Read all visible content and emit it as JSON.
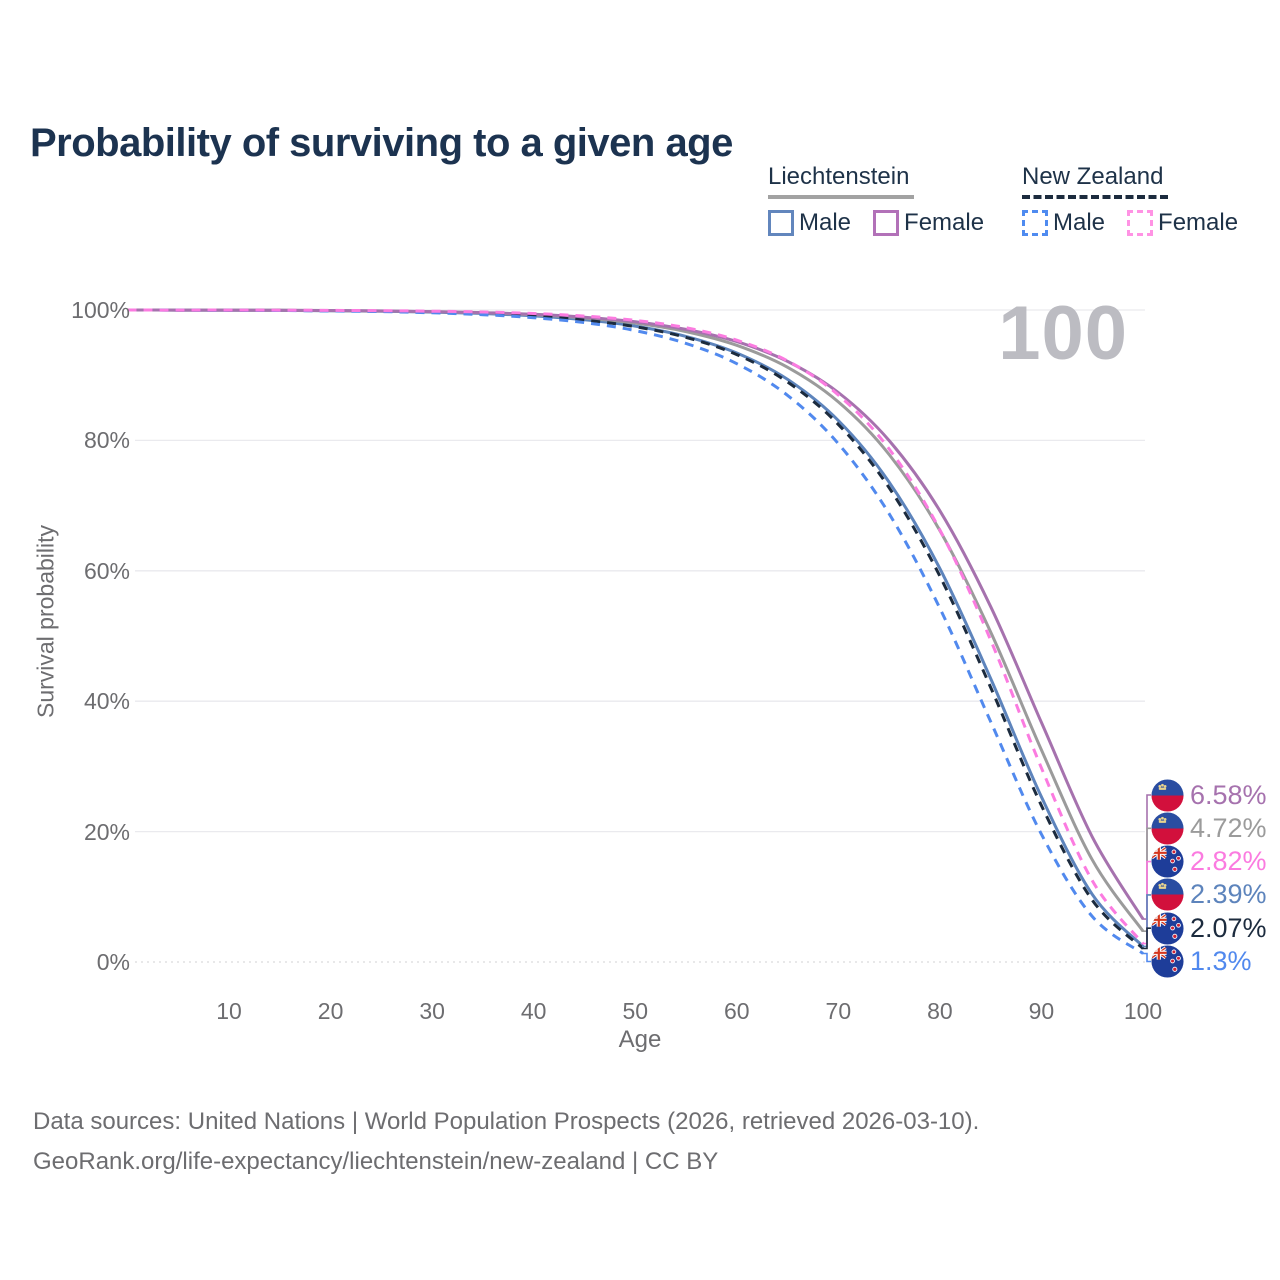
{
  "title": "Probability of surviving to a given age",
  "watermark_age": "100",
  "legend": {
    "groups": [
      {
        "country": "Liechtenstein",
        "line_style": "solid",
        "underline_color": "#a2a2a2",
        "items": [
          {
            "label": "Male",
            "color": "#6286bd",
            "dashed": false
          },
          {
            "label": "Female",
            "color": "#b271b8",
            "dashed": false
          }
        ]
      },
      {
        "country": "New Zealand",
        "line_style": "dashed",
        "underline_color": "#1c2b3e",
        "items": [
          {
            "label": "Male",
            "color": "#4f8bf0",
            "dashed": true
          },
          {
            "label": "Female",
            "color": "#ff93e4",
            "dashed": true
          }
        ]
      }
    ]
  },
  "chart_data": {
    "type": "line",
    "title": "Probability of surviving to a given age",
    "xlabel": "Age",
    "ylabel": "Survival probability",
    "xlim": [
      0,
      100
    ],
    "ylim": [
      0,
      100
    ],
    "grid": "horizontal",
    "legend_position": "top-right",
    "x_ticks": [
      10,
      20,
      30,
      40,
      50,
      60,
      70,
      80,
      90,
      100
    ],
    "y_ticks": [
      {
        "label": "0%",
        "value": 0
      },
      {
        "label": "20%",
        "value": 20
      },
      {
        "label": "40%",
        "value": 40
      },
      {
        "label": "60%",
        "value": 60
      },
      {
        "label": "80%",
        "value": 80
      },
      {
        "label": "100%",
        "value": 100
      }
    ],
    "x": [
      0,
      5,
      10,
      15,
      20,
      25,
      30,
      35,
      40,
      45,
      50,
      55,
      60,
      65,
      70,
      75,
      80,
      85,
      90,
      95,
      100
    ],
    "series": [
      {
        "id": "li-female",
        "name": "Liechtenstein Female",
        "country": "Liechtenstein",
        "sex": "Female",
        "color": "#a672ae",
        "dashed": false,
        "values": [
          100,
          99.99,
          99.98,
          99.96,
          99.92,
          99.86,
          99.76,
          99.6,
          99.34,
          98.9,
          98.2,
          97.03,
          95.15,
          92.12,
          87.34,
          79.99,
          69.2,
          54.5,
          36.75,
          19.2,
          6.58
        ]
      },
      {
        "id": "li-all",
        "name": "Liechtenstein (both sexes)",
        "country": "Liechtenstein",
        "sex": "All",
        "color": "#9b9b9b",
        "dashed": false,
        "values": [
          100,
          99.99,
          99.98,
          99.95,
          99.91,
          99.85,
          99.74,
          99.56,
          99.26,
          98.77,
          97.98,
          96.68,
          94.58,
          91.21,
          85.91,
          77.84,
          66.16,
          50.6,
          32.53,
          15.69,
          4.72
        ]
      },
      {
        "id": "li-male",
        "name": "Liechtenstein Male",
        "country": "Liechtenstein",
        "sex": "Male",
        "color": "#5d84bc",
        "dashed": false,
        "values": [
          100,
          99.99,
          99.97,
          99.94,
          99.89,
          99.81,
          99.68,
          99.46,
          99.1,
          98.5,
          97.53,
          95.95,
          93.4,
          89.35,
          83.05,
          73.61,
          60.34,
          43.47,
          25.33,
          10.39,
          2.39
        ]
      },
      {
        "id": "nz-female",
        "name": "New Zealand Female",
        "country": "New Zealand",
        "sex": "Female",
        "color": "#fb7be0",
        "dashed": true,
        "values": [
          100,
          99.99,
          99.99,
          99.97,
          99.94,
          99.9,
          99.82,
          99.69,
          99.46,
          99.07,
          98.41,
          97.28,
          95.37,
          92.19,
          86.97,
          78.69,
          66.27,
          49.36,
          29.77,
          12.5,
          2.82
        ]
      },
      {
        "id": "nz-all",
        "name": "New Zealand (both sexes)",
        "country": "New Zealand",
        "sex": "All",
        "color": "#1c2b3e",
        "dashed": true,
        "values": [
          100,
          99.99,
          99.97,
          99.94,
          99.89,
          99.8,
          99.66,
          99.44,
          99.06,
          98.45,
          97.44,
          95.8,
          93.16,
          88.96,
          82.45,
          72.75,
          59.17,
          42.1,
          24.01,
          9.51,
          2.07
        ]
      },
      {
        "id": "nz-male",
        "name": "New Zealand Male",
        "country": "New Zealand",
        "sex": "Male",
        "color": "#5189ee",
        "dashed": true,
        "values": [
          100,
          99.98,
          99.96,
          99.92,
          99.85,
          99.75,
          99.57,
          99.28,
          98.82,
          98.06,
          96.84,
          94.88,
          91.77,
          86.9,
          79.5,
          68.76,
          54.25,
          36.85,
          19.6,
          7,
          1.3
        ]
      }
    ],
    "end_labels": [
      {
        "value": "6.58%",
        "series": "li-female",
        "flag": "liechtenstein"
      },
      {
        "value": "4.72%",
        "series": "li-all",
        "flag": "liechtenstein"
      },
      {
        "value": "2.82%",
        "series": "nz-female",
        "flag": "new-zealand"
      },
      {
        "value": "2.39%",
        "series": "li-male",
        "flag": "liechtenstein"
      },
      {
        "value": "2.07%",
        "series": "nz-all",
        "flag": "new-zealand"
      },
      {
        "value": "1.3%",
        "series": "nz-male",
        "flag": "new-zealand"
      }
    ]
  },
  "footer": {
    "line1": "Data sources: United Nations | World Population Prospects (2026, retrieved 2026-03-10).",
    "line2": "GeoRank.org/life-expectancy/liechtenstein/new-zealand | CC BY"
  }
}
